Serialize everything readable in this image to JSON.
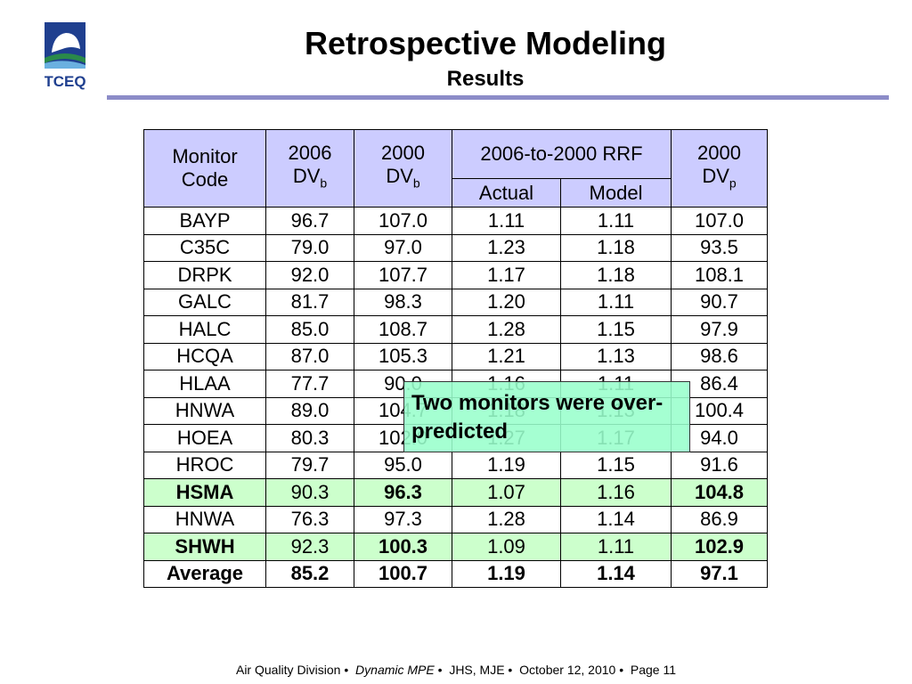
{
  "header": {
    "logo_text": "TCEQ",
    "title": "Retrospective Modeling",
    "subtitle": "Results"
  },
  "table": {
    "columns": [
      {
        "text": "Monitor Code"
      },
      {
        "text": "2006",
        "main": "DV",
        "sub": "b"
      },
      {
        "text": "2000",
        "main": "DV",
        "sub": "b"
      },
      {
        "text": "2006-to-2000 RRF",
        "children": [
          "Actual",
          "Model"
        ]
      },
      {
        "text": "2000",
        "main": "DV",
        "sub": "p"
      }
    ],
    "rows": [
      [
        "BAYP",
        "96.7",
        "107.0",
        "1.11",
        "1.11",
        "107.0"
      ],
      [
        "C35C",
        "79.0",
        "97.0",
        "1.23",
        "1.18",
        "93.5"
      ],
      [
        "DRPK",
        "92.0",
        "107.7",
        "1.17",
        "1.18",
        "108.1"
      ],
      [
        "GALC",
        "81.7",
        "98.3",
        "1.20",
        "1.11",
        "90.7"
      ],
      [
        "HALC",
        "85.0",
        "108.7",
        "1.28",
        "1.15",
        "97.9"
      ],
      [
        "HCQA",
        "87.0",
        "105.3",
        "1.21",
        "1.13",
        "98.6"
      ],
      [
        "HLAA",
        "77.7",
        "90.0",
        "1.16",
        "1.11",
        "86.4"
      ],
      [
        "HNWA",
        "89.0",
        "104.7",
        "1.18",
        "1.13",
        "100.4"
      ],
      [
        "HOEA",
        "80.3",
        "102.0",
        "1.27",
        "1.17",
        "94.0"
      ],
      [
        "HROC",
        "79.7",
        "95.0",
        "1.19",
        "1.15",
        "91.6"
      ],
      [
        "HSMA",
        "90.3",
        "96.3",
        "1.07",
        "1.16",
        "104.8"
      ],
      [
        "HNWA",
        "76.3",
        "97.3",
        "1.28",
        "1.14",
        "86.9"
      ],
      [
        "SHWH",
        "92.3",
        "100.3",
        "1.09",
        "1.11",
        "102.9"
      ],
      [
        "Average",
        "85.2",
        "100.7",
        "1.19",
        "1.14",
        "97.1"
      ]
    ]
  },
  "callout": "Two monitors were over-predicted",
  "footer": [
    "Air Quality Division",
    "Dynamic MPE",
    "JHS, MJE",
    "October 12, 2010",
    "Page 11"
  ]
}
